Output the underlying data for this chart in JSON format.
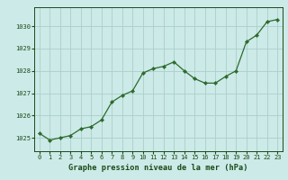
{
  "x": [
    0,
    1,
    2,
    3,
    4,
    5,
    6,
    7,
    8,
    9,
    10,
    11,
    12,
    13,
    14,
    15,
    16,
    17,
    18,
    19,
    20,
    21,
    22,
    23
  ],
  "y": [
    1025.2,
    1024.9,
    1025.0,
    1025.1,
    1025.4,
    1025.5,
    1025.8,
    1026.6,
    1026.9,
    1027.1,
    1027.9,
    1028.1,
    1028.2,
    1028.4,
    1028.0,
    1027.65,
    1027.45,
    1027.45,
    1027.75,
    1028.0,
    1029.3,
    1029.6,
    1030.2,
    1030.3
  ],
  "line_color": "#2d6a2d",
  "marker_color": "#2d6a2d",
  "bg_color": "#cceae7",
  "grid_color": "#aacfcc",
  "xlabel": "Graphe pression niveau de la mer (hPa)",
  "xlabel_color": "#1a4a1a",
  "tick_color": "#1a4a1a",
  "ylim_min": 1024.4,
  "ylim_max": 1030.85,
  "yticks": [
    1025,
    1026,
    1027,
    1028,
    1029,
    1030
  ],
  "xticks": [
    0,
    1,
    2,
    3,
    4,
    5,
    6,
    7,
    8,
    9,
    10,
    11,
    12,
    13,
    14,
    15,
    16,
    17,
    18,
    19,
    20,
    21,
    22,
    23
  ],
  "figw": 3.2,
  "figh": 2.0,
  "dpi": 100
}
